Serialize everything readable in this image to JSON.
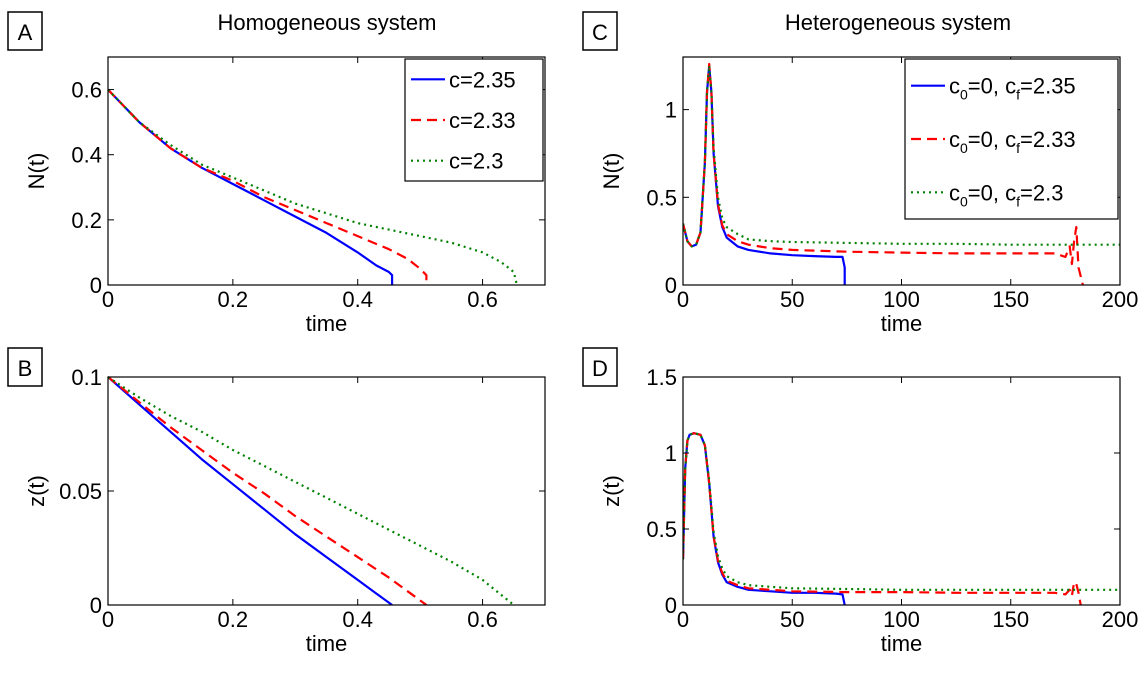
{
  "titles": {
    "left": "Homogeneous system",
    "right": "Heterogeneous system"
  },
  "colors": {
    "series1": "#0000ff",
    "series2": "#ff0000",
    "series3": "#008000"
  },
  "chart_data": [
    {
      "panel": "A",
      "type": "line",
      "title": "Homogeneous system",
      "xlabel": "time",
      "ylabel": "N(t)",
      "xlim": [
        0,
        0.7
      ],
      "ylim": [
        0,
        0.7
      ],
      "xticks": [
        0,
        0.2,
        0.4,
        0.6
      ],
      "xticklabels": [
        "0",
        "0.2",
        "0.4",
        "0.6"
      ],
      "yticks": [
        0,
        0.2,
        0.4,
        0.6
      ],
      "yticklabels": [
        "0",
        "0.2",
        "0.4",
        "0.6"
      ],
      "grid": false,
      "legend": "top-right",
      "series": [
        {
          "name": "c=2.35",
          "style": "solid",
          "x": [
            0,
            0.05,
            0.1,
            0.15,
            0.2,
            0.25,
            0.3,
            0.35,
            0.4,
            0.43,
            0.45,
            0.455,
            0.455
          ],
          "y": [
            0.6,
            0.5,
            0.42,
            0.36,
            0.31,
            0.26,
            0.21,
            0.16,
            0.1,
            0.06,
            0.04,
            0.03,
            0
          ]
        },
        {
          "name": "c=2.33",
          "style": "dashed",
          "x": [
            0,
            0.05,
            0.1,
            0.15,
            0.2,
            0.25,
            0.3,
            0.35,
            0.4,
            0.45,
            0.48,
            0.5,
            0.51,
            0.51
          ],
          "y": [
            0.6,
            0.5,
            0.42,
            0.36,
            0.32,
            0.27,
            0.23,
            0.19,
            0.15,
            0.11,
            0.08,
            0.05,
            0.03,
            0
          ]
        },
        {
          "name": "c=2.3",
          "style": "dotted",
          "x": [
            0,
            0.05,
            0.1,
            0.15,
            0.2,
            0.25,
            0.3,
            0.35,
            0.4,
            0.45,
            0.5,
            0.55,
            0.6,
            0.63,
            0.65,
            0.655
          ],
          "y": [
            0.6,
            0.5,
            0.43,
            0.37,
            0.33,
            0.29,
            0.25,
            0.22,
            0.19,
            0.17,
            0.15,
            0.13,
            0.1,
            0.07,
            0.04,
            0
          ]
        }
      ]
    },
    {
      "panel": "B",
      "type": "line",
      "title": "",
      "xlabel": "time",
      "ylabel": "z(t)",
      "xlim": [
        0,
        0.7
      ],
      "ylim": [
        0,
        0.1
      ],
      "xticks": [
        0,
        0.2,
        0.4,
        0.6
      ],
      "xticklabels": [
        "0",
        "0.2",
        "0.4",
        "0.6"
      ],
      "yticks": [
        0,
        0.05,
        0.1
      ],
      "yticklabels": [
        "0",
        "0.05",
        "0.1"
      ],
      "grid": false,
      "series": [
        {
          "name": "c=2.35",
          "style": "solid",
          "x": [
            0,
            0.05,
            0.1,
            0.15,
            0.2,
            0.25,
            0.3,
            0.35,
            0.4,
            0.43,
            0.455
          ],
          "y": [
            0.1,
            0.088,
            0.076,
            0.064,
            0.053,
            0.042,
            0.031,
            0.021,
            0.011,
            0.005,
            0
          ]
        },
        {
          "name": "c=2.33",
          "style": "dashed",
          "x": [
            0,
            0.05,
            0.1,
            0.15,
            0.2,
            0.25,
            0.3,
            0.35,
            0.4,
            0.45,
            0.48,
            0.51
          ],
          "y": [
            0.1,
            0.089,
            0.078,
            0.068,
            0.058,
            0.049,
            0.039,
            0.03,
            0.021,
            0.012,
            0.006,
            0
          ]
        },
        {
          "name": "c=2.3",
          "style": "dotted",
          "x": [
            0,
            0.05,
            0.1,
            0.15,
            0.2,
            0.25,
            0.3,
            0.35,
            0.4,
            0.45,
            0.5,
            0.55,
            0.6,
            0.65
          ],
          "y": [
            0.1,
            0.091,
            0.083,
            0.076,
            0.068,
            0.061,
            0.054,
            0.047,
            0.04,
            0.033,
            0.026,
            0.019,
            0.011,
            0
          ]
        }
      ]
    },
    {
      "panel": "C",
      "type": "line",
      "title": "Heterogeneous system",
      "xlabel": "time",
      "ylabel": "N(t)",
      "xlim": [
        0,
        200
      ],
      "ylim": [
        0,
        1.3
      ],
      "xticks": [
        0,
        50,
        100,
        150,
        200
      ],
      "xticklabels": [
        "0",
        "50",
        "100",
        "150",
        "200"
      ],
      "yticks": [
        0,
        0.5,
        1
      ],
      "yticklabels": [
        "0",
        "0.5",
        "1"
      ],
      "grid": false,
      "legend": "top-right",
      "legend_entries": [
        {
          "pre": "c",
          "sub0": "0",
          "mid": "=0, c",
          "sub1": "f",
          "post": "=2.35"
        },
        {
          "pre": "c",
          "sub0": "0",
          "mid": "=0, c",
          "sub1": "f",
          "post": "=2.33"
        },
        {
          "pre": "c",
          "sub0": "0",
          "mid": "=0, c",
          "sub1": "f",
          "post": "=2.3"
        }
      ],
      "series": [
        {
          "name": "c0=0, cf=2.35",
          "style": "solid",
          "x": [
            0,
            2,
            4,
            6,
            8,
            10,
            11,
            12,
            13,
            14,
            16,
            18,
            20,
            25,
            30,
            40,
            50,
            60,
            70,
            73,
            74,
            74
          ],
          "y": [
            0.35,
            0.25,
            0.22,
            0.23,
            0.3,
            0.7,
            1.1,
            1.25,
            1.1,
            0.75,
            0.45,
            0.33,
            0.27,
            0.22,
            0.2,
            0.18,
            0.17,
            0.165,
            0.16,
            0.16,
            0.1,
            0
          ]
        },
        {
          "name": "c0=0, cf=2.33",
          "style": "dashed",
          "x": [
            0,
            2,
            4,
            6,
            8,
            10,
            11,
            12,
            13,
            14,
            16,
            18,
            20,
            25,
            30,
            40,
            50,
            75,
            100,
            125,
            150,
            170,
            175,
            177,
            178,
            179,
            180,
            181,
            182,
            183
          ],
          "y": [
            0.35,
            0.25,
            0.22,
            0.23,
            0.3,
            0.7,
            1.1,
            1.26,
            1.1,
            0.75,
            0.46,
            0.34,
            0.29,
            0.25,
            0.23,
            0.21,
            0.2,
            0.19,
            0.185,
            0.18,
            0.18,
            0.18,
            0.16,
            0.22,
            0.12,
            0.25,
            0.33,
            0.1,
            0.05,
            0
          ]
        },
        {
          "name": "c0=0, cf=2.3",
          "style": "dotted",
          "x": [
            0,
            2,
            4,
            6,
            8,
            10,
            11,
            12,
            13,
            14,
            16,
            18,
            20,
            25,
            30,
            40,
            50,
            75,
            100,
            125,
            150,
            175,
            200
          ],
          "y": [
            0.35,
            0.25,
            0.22,
            0.23,
            0.3,
            0.7,
            1.1,
            1.25,
            1.1,
            0.78,
            0.5,
            0.38,
            0.33,
            0.29,
            0.26,
            0.25,
            0.245,
            0.24,
            0.235,
            0.235,
            0.23,
            0.23,
            0.23
          ]
        }
      ]
    },
    {
      "panel": "D",
      "type": "line",
      "title": "",
      "xlabel": "time",
      "ylabel": "z(t)",
      "xlim": [
        0,
        200
      ],
      "ylim": [
        0,
        1.5
      ],
      "xticks": [
        0,
        50,
        100,
        150,
        200
      ],
      "xticklabels": [
        "0",
        "50",
        "100",
        "150",
        "200"
      ],
      "yticks": [
        0,
        0.5,
        1,
        1.5
      ],
      "yticklabels": [
        "0",
        "0.5",
        "1",
        "1.5"
      ],
      "grid": false,
      "series": [
        {
          "name": "c0=0, cf=2.35",
          "style": "solid",
          "x": [
            0,
            1,
            2,
            3,
            5,
            8,
            10,
            12,
            14,
            16,
            18,
            20,
            25,
            30,
            40,
            50,
            60,
            70,
            73,
            74
          ],
          "y": [
            0.3,
            0.9,
            1.08,
            1.12,
            1.13,
            1.12,
            1.05,
            0.8,
            0.45,
            0.28,
            0.2,
            0.15,
            0.12,
            0.1,
            0.09,
            0.08,
            0.08,
            0.075,
            0.07,
            0
          ]
        },
        {
          "name": "c0=0, cf=2.33",
          "style": "dashed",
          "x": [
            0,
            1,
            2,
            3,
            5,
            8,
            10,
            12,
            14,
            16,
            18,
            20,
            25,
            30,
            40,
            50,
            75,
            100,
            125,
            150,
            170,
            175,
            177,
            178,
            179,
            180,
            181,
            182
          ],
          "y": [
            0.3,
            0.9,
            1.08,
            1.12,
            1.13,
            1.12,
            1.05,
            0.8,
            0.45,
            0.29,
            0.21,
            0.16,
            0.13,
            0.11,
            0.1,
            0.09,
            0.085,
            0.085,
            0.08,
            0.08,
            0.08,
            0.07,
            0.1,
            0.06,
            0.15,
            0.14,
            0.08,
            0
          ]
        },
        {
          "name": "c0=0, cf=2.3",
          "style": "dotted",
          "x": [
            0,
            1,
            2,
            3,
            5,
            8,
            10,
            12,
            14,
            16,
            18,
            20,
            25,
            30,
            40,
            50,
            75,
            100,
            125,
            150,
            175,
            200
          ],
          "y": [
            0.3,
            0.9,
            1.08,
            1.12,
            1.13,
            1.12,
            1.05,
            0.82,
            0.48,
            0.32,
            0.24,
            0.19,
            0.15,
            0.13,
            0.12,
            0.11,
            0.105,
            0.1,
            0.1,
            0.1,
            0.1,
            0.1
          ]
        }
      ]
    }
  ]
}
